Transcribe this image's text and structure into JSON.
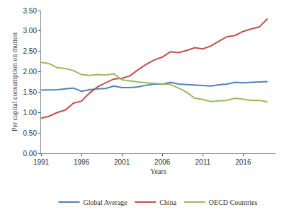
{
  "chart_data": {
    "type": "line",
    "x_label": "Years",
    "y_label": "Per capital consumption on mutton",
    "x": [
      1991,
      1992,
      1993,
      1994,
      1995,
      1996,
      1997,
      1998,
      1999,
      2000,
      2001,
      2002,
      2003,
      2004,
      2005,
      2006,
      2007,
      2008,
      2009,
      2010,
      2011,
      2012,
      2013,
      2014,
      2015,
      2016,
      2017,
      2018,
      2019
    ],
    "series": [
      {
        "name": "Global Average",
        "color": "#4f81bd",
        "values": [
          1.55,
          1.55,
          1.56,
          1.58,
          1.6,
          1.52,
          1.56,
          1.58,
          1.59,
          1.65,
          1.61,
          1.61,
          1.63,
          1.67,
          1.7,
          1.7,
          1.74,
          1.7,
          1.69,
          1.68,
          1.66,
          1.65,
          1.68,
          1.7,
          1.74,
          1.73,
          1.74,
          1.75,
          1.76
        ]
      },
      {
        "name": "China",
        "color": "#c0504d",
        "values": [
          0.86,
          0.91,
          1.0,
          1.06,
          1.23,
          1.28,
          1.48,
          1.63,
          1.73,
          1.82,
          1.84,
          1.9,
          2.05,
          2.18,
          2.29,
          2.36,
          2.49,
          2.47,
          2.52,
          2.59,
          2.56,
          2.63,
          2.75,
          2.86,
          2.89,
          2.99,
          3.05,
          3.1,
          3.3
        ]
      },
      {
        "name": "OECD Countries",
        "color": "#9bbb59",
        "values": [
          2.23,
          2.2,
          2.1,
          2.08,
          2.03,
          1.93,
          1.91,
          1.93,
          1.92,
          1.95,
          1.8,
          1.77,
          1.75,
          1.73,
          1.72,
          1.7,
          1.69,
          1.6,
          1.5,
          1.35,
          1.32,
          1.27,
          1.29,
          1.3,
          1.35,
          1.33,
          1.3,
          1.3,
          1.26
        ]
      }
    ],
    "xlim": [
      1991,
      2020
    ],
    "xticks": [
      1991,
      1996,
      2001,
      2006,
      2011,
      2016
    ],
    "ylim": [
      0,
      3.5
    ],
    "yticks": [
      {
        "value": 0,
        "label": "0.00"
      },
      {
        "value": 0.5,
        "label": "0.50"
      },
      {
        "value": 1,
        "label": "1.00"
      },
      {
        "value": 1.5,
        "label": "1.50"
      },
      {
        "value": 2,
        "label": "2.00"
      },
      {
        "value": 2.5,
        "label": "2.50"
      },
      {
        "value": 3,
        "label": "3.00"
      },
      {
        "value": 3.5,
        "label": "3.50"
      }
    ],
    "grid": false,
    "legend": "bottom"
  }
}
